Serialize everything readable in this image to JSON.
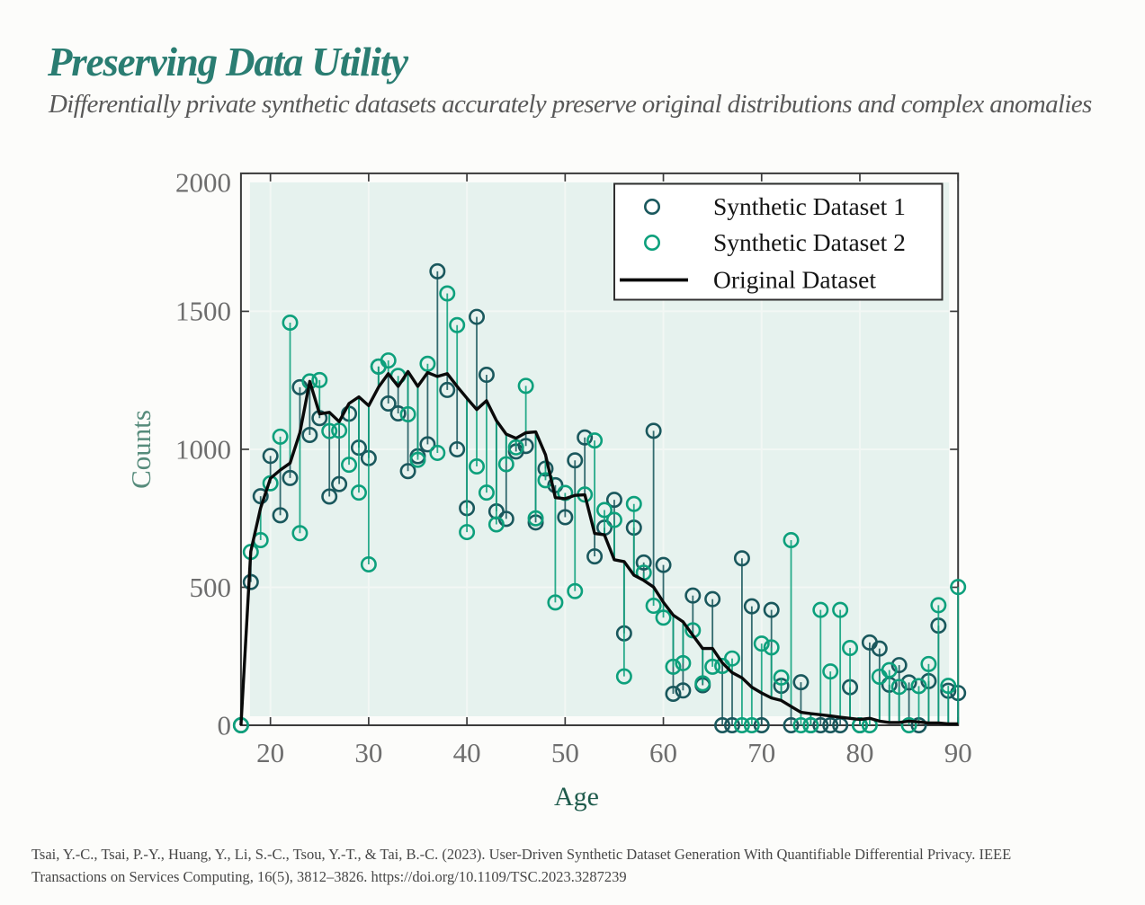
{
  "page": {
    "background": "#FCFCFA"
  },
  "header": {
    "title": "Preserving Data Utility",
    "title_color": "#2A7D72",
    "subtitle": "Differentially private synthetic datasets accurately preserve original distributions and complex anomalies",
    "subtitle_color": "#585858"
  },
  "citation": {
    "text": "Tsai, Y.-C., Tsai, P.-Y., Huang, Y., Li, S.-C., Tsou, Y.-T., & Tai, B.-C. (2023). User-Driven Synthetic Dataset Generation With Quantifiable Differential Privacy. IEEE Transactions on Services Computing, 16(5), 3812–3826. https://doi.org/10.1109/TSC.2023.3287239",
    "color": "#474747"
  },
  "chart_data": {
    "type": "stem+line",
    "title": "",
    "xlabel": "Age",
    "ylabel": "Counts",
    "xlim": [
      17,
      90
    ],
    "ylim": [
      0,
      2000
    ],
    "xticks": [
      20,
      30,
      40,
      50,
      60,
      70,
      80,
      90
    ],
    "yticks": [
      0,
      500,
      1000,
      1500,
      2000
    ],
    "grid": true,
    "legend_position": "top-right",
    "plot_bg": "#E6F2EE",
    "grid_color": "#F2F7F4",
    "frame_color": "#3B3B3B",
    "tick_label_color": "#6E6E6E",
    "xlabel_color": "#1F5B4C",
    "ylabel_color": "#568B7B",
    "legend_text_color": "#141414",
    "x": [
      17,
      18,
      19,
      20,
      21,
      22,
      23,
      24,
      25,
      26,
      27,
      28,
      29,
      30,
      31,
      32,
      33,
      34,
      35,
      36,
      37,
      38,
      39,
      40,
      41,
      42,
      43,
      44,
      45,
      46,
      47,
      48,
      49,
      50,
      51,
      52,
      53,
      54,
      55,
      56,
      57,
      58,
      59,
      60,
      61,
      62,
      63,
      64,
      65,
      66,
      67,
      68,
      69,
      70,
      71,
      72,
      73,
      74,
      75,
      76,
      77,
      78,
      79,
      80,
      81,
      82,
      83,
      84,
      85,
      86,
      87,
      88,
      89,
      90
    ],
    "series": [
      {
        "name": "Synthetic Dataset 1",
        "kind": "stem",
        "color": "#1A585D",
        "values": [
          0,
          519,
          830,
          976,
          761,
          896,
          1225,
          1052,
          1113,
          829,
          874,
          1129,
          1006,
          968,
          1300,
          1166,
          1130,
          921,
          975,
          1018,
          1645,
          1215,
          1000,
          787,
          1480,
          1270,
          775,
          748,
          992,
          1012,
          735,
          930,
          870,
          754,
          960,
          1043,
          612,
          716,
          817,
          333,
          716,
          590,
          1067,
          581,
          114,
          126,
          470,
          145,
          457,
          0,
          0,
          605,
          431,
          0,
          418,
          143,
          0,
          156,
          0,
          0,
          0,
          0,
          138,
          0,
          300,
          278,
          147,
          218,
          155,
          0,
          160,
          361,
          125,
          117
        ]
      },
      {
        "name": "Synthetic Dataset 2",
        "kind": "stem",
        "color": "#0DA07C",
        "values": [
          0,
          628,
          671,
          877,
          1046,
          1459,
          696,
          1246,
          1251,
          1066,
          1068,
          944,
          843,
          583,
          1300,
          1322,
          1266,
          1127,
          962,
          1310,
          987,
          1565,
          1450,
          700,
          938,
          843,
          728,
          946,
          1007,
          1230,
          750,
          888,
          445,
          842,
          486,
          836,
          1032,
          780,
          744,
          177,
          802,
          553,
          433,
          390,
          212,
          225,
          344,
          152,
          212,
          215,
          242,
          0,
          0,
          296,
          282,
          173,
          671,
          0,
          0,
          418,
          195,
          418,
          280,
          0,
          0,
          176,
          200,
          139,
          0,
          142,
          222,
          435,
          143,
          501
        ]
      },
      {
        "name": "Original Dataset",
        "kind": "line",
        "color": "#0A0A0A",
        "values": [
          0,
          630,
          787,
          895,
          925,
          950,
          1060,
          1246,
          1128,
          1134,
          1100,
          1166,
          1190,
          1158,
          1225,
          1274,
          1228,
          1282,
          1228,
          1278,
          1264,
          1274,
          1228,
          1185,
          1144,
          1176,
          1104,
          1055,
          1040,
          1060,
          1063,
          980,
          825,
          821,
          833,
          835,
          695,
          690,
          600,
          593,
          544,
          525,
          501,
          446,
          399,
          375,
          326,
          278,
          278,
          226,
          191,
          172,
          138,
          117,
          99,
          90,
          68,
          47,
          42,
          38,
          34,
          29,
          25,
          21,
          25,
          15,
          10,
          10,
          15,
          12,
          8,
          8,
          5,
          5
        ]
      }
    ],
    "stem_baseline": "line-series"
  }
}
